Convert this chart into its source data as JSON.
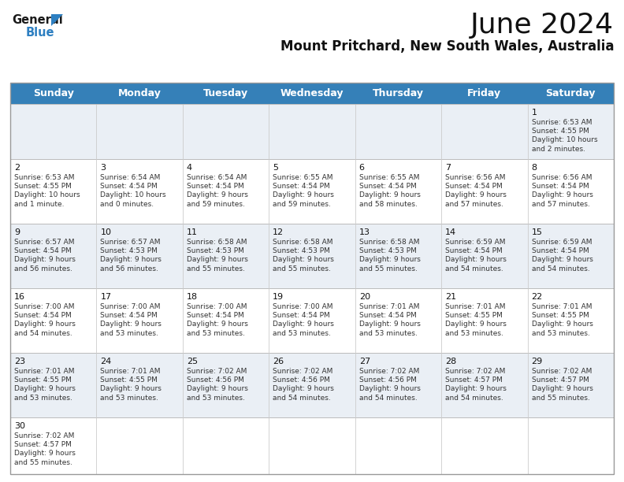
{
  "title": "June 2024",
  "subtitle": "Mount Pritchard, New South Wales, Australia",
  "header_color": "#3580b8",
  "header_text_color": "#ffffff",
  "days_of_week": [
    "Sunday",
    "Monday",
    "Tuesday",
    "Wednesday",
    "Thursday",
    "Friday",
    "Saturday"
  ],
  "bg_color": "#ffffff",
  "row_bg_colors": [
    "#eaeff5",
    "#ffffff",
    "#eaeff5",
    "#ffffff",
    "#eaeff5",
    "#ffffff"
  ],
  "border_color": "#bbbbbb",
  "text_color": "#333333",
  "calendar": [
    [
      null,
      null,
      null,
      null,
      null,
      null,
      {
        "day": "1",
        "sunrise": "6:53 AM",
        "sunset": "4:55 PM",
        "daylight": "10 hours\nand 2 minutes."
      }
    ],
    [
      {
        "day": "2",
        "sunrise": "6:53 AM",
        "sunset": "4:55 PM",
        "daylight": "10 hours\nand 1 minute."
      },
      {
        "day": "3",
        "sunrise": "6:54 AM",
        "sunset": "4:54 PM",
        "daylight": "10 hours\nand 0 minutes."
      },
      {
        "day": "4",
        "sunrise": "6:54 AM",
        "sunset": "4:54 PM",
        "daylight": "9 hours\nand 59 minutes."
      },
      {
        "day": "5",
        "sunrise": "6:55 AM",
        "sunset": "4:54 PM",
        "daylight": "9 hours\nand 59 minutes."
      },
      {
        "day": "6",
        "sunrise": "6:55 AM",
        "sunset": "4:54 PM",
        "daylight": "9 hours\nand 58 minutes."
      },
      {
        "day": "7",
        "sunrise": "6:56 AM",
        "sunset": "4:54 PM",
        "daylight": "9 hours\nand 57 minutes."
      },
      {
        "day": "8",
        "sunrise": "6:56 AM",
        "sunset": "4:54 PM",
        "daylight": "9 hours\nand 57 minutes."
      }
    ],
    [
      {
        "day": "9",
        "sunrise": "6:57 AM",
        "sunset": "4:54 PM",
        "daylight": "9 hours\nand 56 minutes."
      },
      {
        "day": "10",
        "sunrise": "6:57 AM",
        "sunset": "4:53 PM",
        "daylight": "9 hours\nand 56 minutes."
      },
      {
        "day": "11",
        "sunrise": "6:58 AM",
        "sunset": "4:53 PM",
        "daylight": "9 hours\nand 55 minutes."
      },
      {
        "day": "12",
        "sunrise": "6:58 AM",
        "sunset": "4:53 PM",
        "daylight": "9 hours\nand 55 minutes."
      },
      {
        "day": "13",
        "sunrise": "6:58 AM",
        "sunset": "4:53 PM",
        "daylight": "9 hours\nand 55 minutes."
      },
      {
        "day": "14",
        "sunrise": "6:59 AM",
        "sunset": "4:54 PM",
        "daylight": "9 hours\nand 54 minutes."
      },
      {
        "day": "15",
        "sunrise": "6:59 AM",
        "sunset": "4:54 PM",
        "daylight": "9 hours\nand 54 minutes."
      }
    ],
    [
      {
        "day": "16",
        "sunrise": "7:00 AM",
        "sunset": "4:54 PM",
        "daylight": "9 hours\nand 54 minutes."
      },
      {
        "day": "17",
        "sunrise": "7:00 AM",
        "sunset": "4:54 PM",
        "daylight": "9 hours\nand 53 minutes."
      },
      {
        "day": "18",
        "sunrise": "7:00 AM",
        "sunset": "4:54 PM",
        "daylight": "9 hours\nand 53 minutes."
      },
      {
        "day": "19",
        "sunrise": "7:00 AM",
        "sunset": "4:54 PM",
        "daylight": "9 hours\nand 53 minutes."
      },
      {
        "day": "20",
        "sunrise": "7:01 AM",
        "sunset": "4:54 PM",
        "daylight": "9 hours\nand 53 minutes."
      },
      {
        "day": "21",
        "sunrise": "7:01 AM",
        "sunset": "4:55 PM",
        "daylight": "9 hours\nand 53 minutes."
      },
      {
        "day": "22",
        "sunrise": "7:01 AM",
        "sunset": "4:55 PM",
        "daylight": "9 hours\nand 53 minutes."
      }
    ],
    [
      {
        "day": "23",
        "sunrise": "7:01 AM",
        "sunset": "4:55 PM",
        "daylight": "9 hours\nand 53 minutes."
      },
      {
        "day": "24",
        "sunrise": "7:01 AM",
        "sunset": "4:55 PM",
        "daylight": "9 hours\nand 53 minutes."
      },
      {
        "day": "25",
        "sunrise": "7:02 AM",
        "sunset": "4:56 PM",
        "daylight": "9 hours\nand 53 minutes."
      },
      {
        "day": "26",
        "sunrise": "7:02 AM",
        "sunset": "4:56 PM",
        "daylight": "9 hours\nand 54 minutes."
      },
      {
        "day": "27",
        "sunrise": "7:02 AM",
        "sunset": "4:56 PM",
        "daylight": "9 hours\nand 54 minutes."
      },
      {
        "day": "28",
        "sunrise": "7:02 AM",
        "sunset": "4:57 PM",
        "daylight": "9 hours\nand 54 minutes."
      },
      {
        "day": "29",
        "sunrise": "7:02 AM",
        "sunset": "4:57 PM",
        "daylight": "9 hours\nand 55 minutes."
      }
    ],
    [
      {
        "day": "30",
        "sunrise": "7:02 AM",
        "sunset": "4:57 PM",
        "daylight": "9 hours\nand 55 minutes."
      },
      null,
      null,
      null,
      null,
      null,
      null
    ]
  ],
  "logo_general_color": "#1a1a1a",
  "logo_blue_color": "#2d7fc1",
  "title_fontsize": 26,
  "subtitle_fontsize": 12,
  "header_fontsize": 9,
  "day_num_fontsize": 8,
  "cell_text_fontsize": 6.5
}
